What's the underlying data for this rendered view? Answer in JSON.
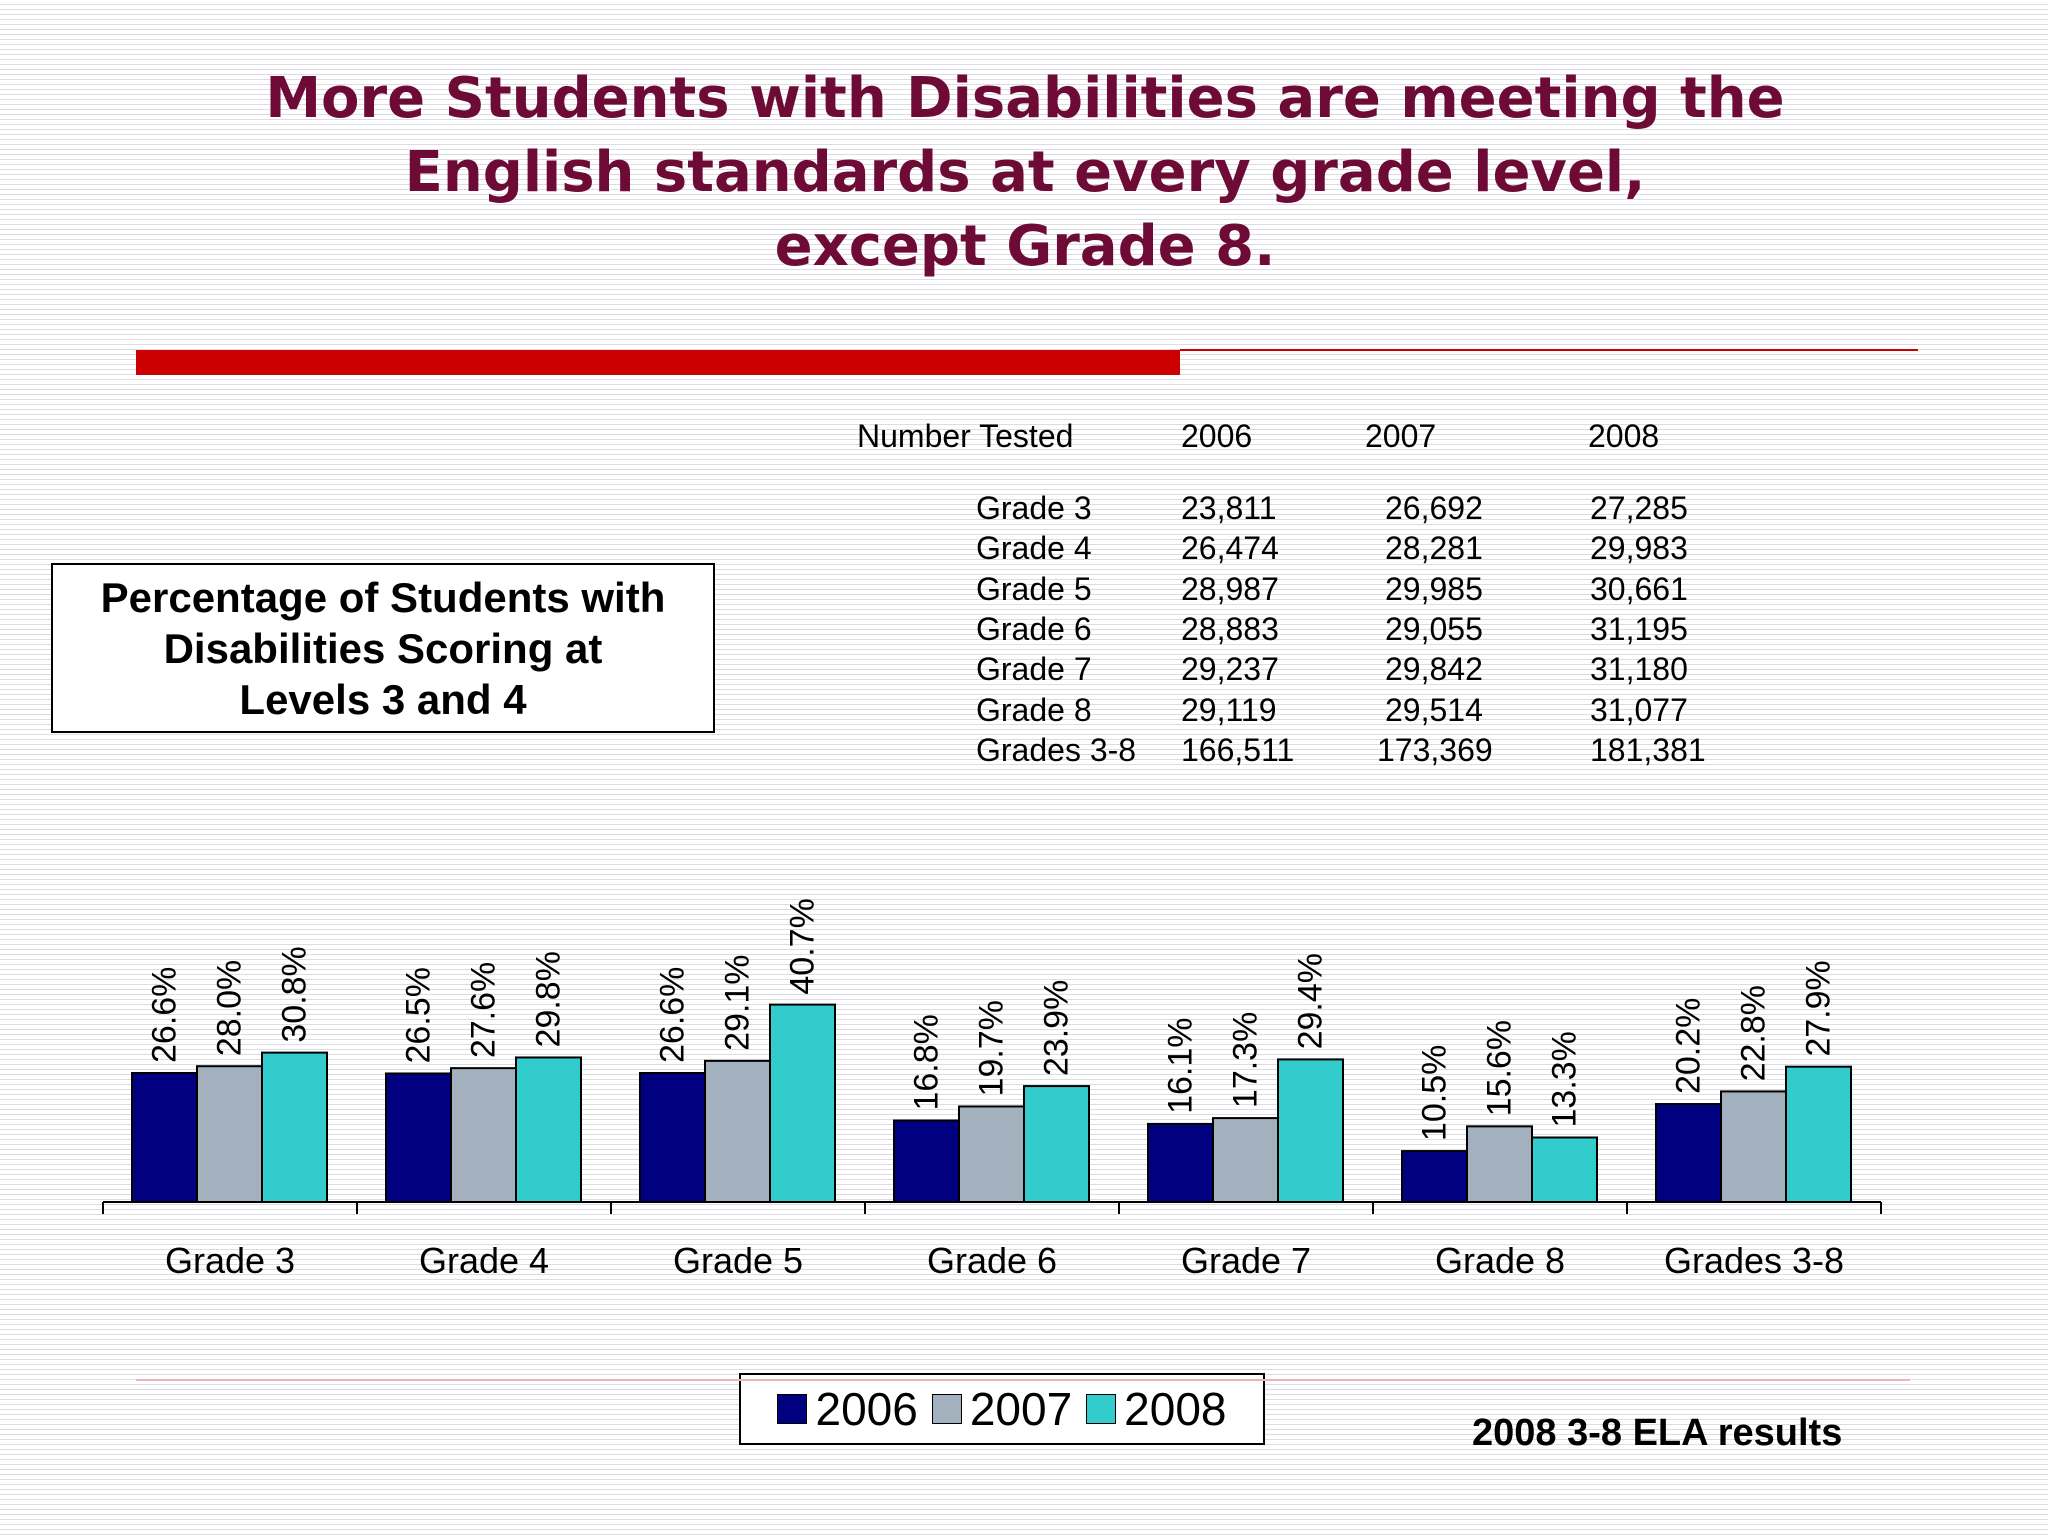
{
  "slide": {
    "title_lines": [
      "More Students with Disabilities are meeting the",
      "English standards at every grade level,",
      "except Grade 8."
    ],
    "subtitle_lines": [
      "Percentage of Students with",
      "Disabilities Scoring at",
      "Levels 3 and 4"
    ],
    "source": "2008 3-8 ELA results"
  },
  "number_tested": {
    "header": {
      "label": "Number Tested",
      "years": [
        "2006",
        "2007",
        "2008"
      ]
    },
    "rows": [
      {
        "grade": "Grade 3",
        "values": [
          "23,811",
          "26,692",
          "27,285"
        ]
      },
      {
        "grade": "Grade 4",
        "values": [
          "26,474",
          "28,281",
          "29,983"
        ]
      },
      {
        "grade": "Grade 5",
        "values": [
          "28,987",
          "29,985",
          "30,661"
        ]
      },
      {
        "grade": "Grade 6",
        "values": [
          "28,883",
          "29,055",
          "31,195"
        ]
      },
      {
        "grade": "Grade 7",
        "values": [
          "29,237",
          "29,842",
          "31,180"
        ]
      },
      {
        "grade": "Grade 8",
        "values": [
          "29,119",
          "29,514",
          "31,077"
        ]
      },
      {
        "grade": "Grades 3-8",
        "values": [
          "166,511",
          "173,369",
          "181,381"
        ]
      }
    ]
  },
  "chart_data": {
    "type": "bar",
    "title": "Percentage of Students with Disabilities Scoring at Levels 3 and 4",
    "categories": [
      "Grade 3",
      "Grade 4",
      "Grade 5",
      "Grade 6",
      "Grade 7",
      "Grade 8",
      "Grades 3-8"
    ],
    "series": [
      {
        "name": "2006",
        "color": "#000080",
        "values": [
          26.6,
          26.5,
          26.6,
          16.8,
          16.1,
          10.5,
          20.2
        ],
        "labels": [
          "26.6%",
          "26.5%",
          "26.6%",
          "16.8%",
          "16.1%",
          "10.5%",
          "20.2%"
        ]
      },
      {
        "name": "2007",
        "color": "#a3b1bf",
        "values": [
          28.0,
          27.6,
          29.1,
          19.7,
          17.3,
          15.6,
          22.8
        ],
        "labels": [
          "28.0%",
          "27.6%",
          "29.1%",
          "19.7%",
          "17.3%",
          "15.6%",
          "22.8%"
        ]
      },
      {
        "name": "2008",
        "color": "#33cccc",
        "values": [
          30.8,
          29.8,
          40.7,
          23.9,
          29.4,
          13.3,
          27.9
        ],
        "labels": [
          "30.8%",
          "29.8%",
          "40.7%",
          "23.9%",
          "29.4%",
          "13.3%",
          "27.9%"
        ]
      }
    ],
    "ylim": [
      0,
      100
    ],
    "grid": false,
    "legend_position": "bottom-center"
  }
}
